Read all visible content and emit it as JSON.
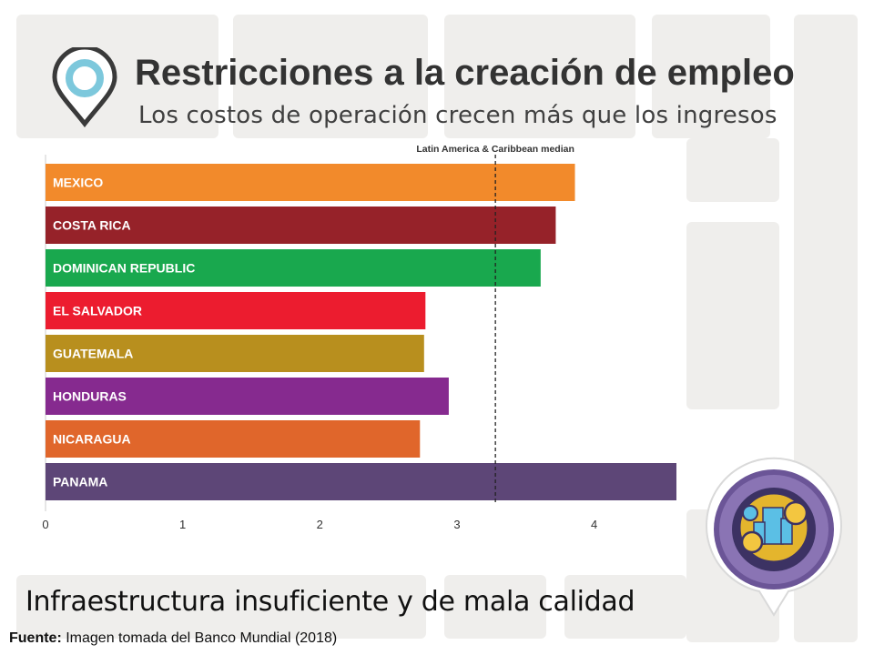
{
  "slide": {
    "title": "Restricciones a la creación de empleo",
    "subtitle": "Los costos de operación crecen más que los ingresos",
    "caption": "Infraestructura insuficiente y de mala calidad",
    "source_label": "Fuente:",
    "source_text": " Imagen tomada del Banco Mundial (2018)",
    "icons": {
      "pin": "location-pin-icon",
      "badge": "infrastructure-badge-icon"
    },
    "colors": {
      "title": "#333333",
      "pin_ring": "#7dc8dc",
      "badge": "#6b5597"
    }
  },
  "chart_data": {
    "type": "bar",
    "orientation": "horizontal",
    "title": "",
    "xlabel": "",
    "ylabel": "",
    "categories": [
      "MEXICO",
      "COSTA RICA",
      "DOMINICAN REPUBLIC",
      "EL SALVADOR",
      "GUATEMALA",
      "HONDURAS",
      "NICARAGUA",
      "PANAMA"
    ],
    "values": [
      3.86,
      3.72,
      3.61,
      2.77,
      2.76,
      2.94,
      2.73,
      4.6
    ],
    "colors": [
      "#f28a2b",
      "#962229",
      "#19a84e",
      "#ec1c2f",
      "#b88f1e",
      "#862a8f",
      "#e0662b",
      "#5d4677"
    ],
    "xlim": [
      0,
      4.6
    ],
    "xticks": [
      0,
      1,
      2,
      3,
      4
    ],
    "reference_line": {
      "label": "Latin America & Caribbean median",
      "value": 3.28
    },
    "grid": false
  }
}
